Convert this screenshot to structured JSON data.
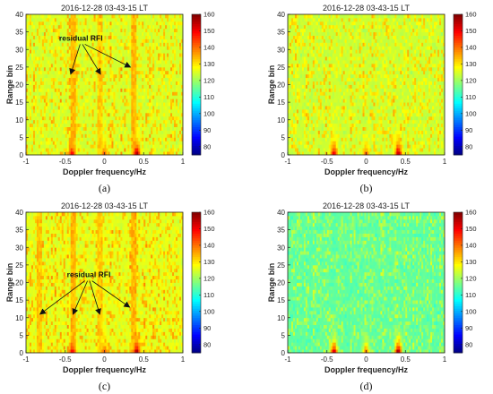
{
  "colors": {
    "colormap": "jet",
    "background": "#ffffff",
    "axis": "#222222"
  },
  "chart_data": [
    {
      "type": "heatmap",
      "panel_label": "(a)",
      "title": "2016-12-28 03-43-15 LT",
      "xlabel": "Doppler frequency/Hz",
      "ylabel": "Range bin",
      "xlim": [
        -1,
        1
      ],
      "ylim": [
        0,
        40
      ],
      "xticks": [
        "-1",
        "-0.5",
        "0",
        "0.5",
        "1"
      ],
      "yticks": [
        "0",
        "5",
        "10",
        "15",
        "20",
        "25",
        "30",
        "35",
        "40"
      ],
      "colorbar": {
        "min": 75,
        "max": 160,
        "ticks": [
          "80",
          "90",
          "100",
          "110",
          "120",
          "130",
          "140",
          "150",
          "160"
        ]
      },
      "background_level": 123,
      "noise_amplitude": 12,
      "echoes": [
        {
          "doppler": -0.41,
          "peak": 150
        },
        {
          "doppler": 0.0,
          "peak": 140
        },
        {
          "doppler": 0.41,
          "peak": 156
        }
      ],
      "rfi_lines": [
        {
          "doppler": -0.4,
          "level": 134
        },
        {
          "doppler": -0.05,
          "level": 132
        },
        {
          "doppler": 0.38,
          "level": 134
        }
      ],
      "annotation": {
        "text": "residual RFI",
        "anchor": [
          -0.3,
          32.5
        ],
        "arrow_tips": [
          [
            -0.43,
            23
          ],
          [
            -0.05,
            23
          ],
          [
            0.33,
            25
          ]
        ]
      }
    },
    {
      "type": "heatmap",
      "panel_label": "(b)",
      "title": "2016-12-28 03-43-15 LT",
      "xlabel": "Doppler frequency/Hz",
      "ylabel": "Range bin",
      "xlim": [
        -1,
        1
      ],
      "ylim": [
        0,
        40
      ],
      "xticks": [
        "-1",
        "-0.5",
        "0",
        "0.5",
        "1"
      ],
      "yticks": [
        "0",
        "5",
        "10",
        "15",
        "20",
        "25",
        "30",
        "35",
        "40"
      ],
      "colorbar": {
        "min": 75,
        "max": 160,
        "ticks": [
          "80",
          "90",
          "100",
          "110",
          "120",
          "130",
          "140",
          "150",
          "160"
        ]
      },
      "background_level": 122,
      "noise_amplitude": 11,
      "echoes": [
        {
          "doppler": -0.41,
          "peak": 150
        },
        {
          "doppler": 0.0,
          "peak": 140
        },
        {
          "doppler": 0.41,
          "peak": 156
        }
      ],
      "rfi_lines": [],
      "annotation": null
    },
    {
      "type": "heatmap",
      "panel_label": "(c)",
      "title": "2016-12-28 03-43-15 LT",
      "xlabel": "Doppler frequency/Hz",
      "ylabel": "Range bin",
      "xlim": [
        -1,
        1
      ],
      "ylim": [
        0,
        40
      ],
      "xticks": [
        "-1",
        "-0.5",
        "0",
        "0.5",
        "1"
      ],
      "yticks": [
        "0",
        "5",
        "10",
        "15",
        "20",
        "25",
        "30",
        "35",
        "40"
      ],
      "colorbar": {
        "min": 75,
        "max": 160,
        "ticks": [
          "80",
          "90",
          "100",
          "110",
          "120",
          "130",
          "140",
          "150",
          "160"
        ]
      },
      "background_level": 124,
      "noise_amplitude": 12,
      "echoes": [
        {
          "doppler": -0.41,
          "peak": 152
        },
        {
          "doppler": 0.0,
          "peak": 142
        },
        {
          "doppler": 0.41,
          "peak": 157
        }
      ],
      "rfi_lines": [
        {
          "doppler": -0.83,
          "level": 133
        },
        {
          "doppler": -0.4,
          "level": 134
        },
        {
          "doppler": -0.05,
          "level": 132
        },
        {
          "doppler": 0.38,
          "level": 134
        }
      ],
      "annotation": {
        "text": "residual RFI",
        "anchor": [
          -0.2,
          21.5
        ],
        "arrow_tips": [
          [
            -0.82,
            11
          ],
          [
            -0.4,
            11
          ],
          [
            -0.06,
            11
          ],
          [
            0.32,
            13
          ]
        ]
      }
    },
    {
      "type": "heatmap",
      "panel_label": "(d)",
      "title": "2016-12-28 03-43-15 LT",
      "xlabel": "Doppler frequency/Hz",
      "ylabel": "Range bin",
      "xlim": [
        -1,
        1
      ],
      "ylim": [
        0,
        40
      ],
      "xticks": [
        "-1",
        "-0.5",
        "0",
        "0.5",
        "1"
      ],
      "yticks": [
        "0",
        "5",
        "10",
        "15",
        "20",
        "25",
        "30",
        "35",
        "40"
      ],
      "colorbar": {
        "min": 75,
        "max": 160,
        "ticks": [
          "80",
          "90",
          "100",
          "110",
          "120",
          "130",
          "140",
          "150",
          "160"
        ]
      },
      "background_level": 113,
      "noise_amplitude": 10,
      "echoes": [
        {
          "doppler": -0.41,
          "peak": 153
        },
        {
          "doppler": 0.0,
          "peak": 140
        },
        {
          "doppler": 0.41,
          "peak": 158
        }
      ],
      "rfi_lines": [],
      "annotation": null
    }
  ]
}
